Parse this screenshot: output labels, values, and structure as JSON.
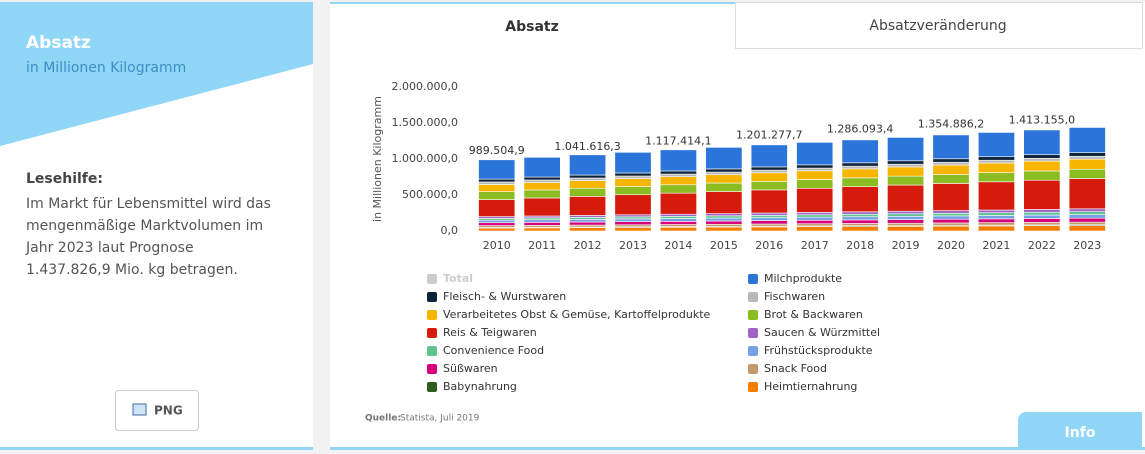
{
  "sidebar": {
    "title": "Absatz",
    "subtitle": "in Millionen Kilogramm",
    "help_heading": "Lesehilfe:",
    "help_lines": [
      "Im Markt für Lebensmittel wird das",
      "mengenmäßige Marktvolumen im",
      "Jahr 2023 laut Prognose",
      "1.437.826,9 Mio. kg betragen."
    ],
    "button": "PNG"
  },
  "tabs": [
    "Absatz",
    "Absatzveränderung"
  ],
  "source_label": "Quelle:",
  "source_text": "Statista, Juli 2019",
  "info_button": "Info",
  "chart_data": {
    "type": "bar",
    "stacked": true,
    "y_label": "in Millionen Kilogramm",
    "categories": [
      "2010",
      "2011",
      "2012",
      "2013",
      "2014",
      "2015",
      "2016",
      "2017",
      "2018",
      "2019",
      "2020",
      "2021",
      "2022",
      "2023"
    ],
    "ylim": [
      0,
      2000000
    ],
    "yticks": [
      {
        "value": 0,
        "label": "0,0"
      },
      {
        "value": 500000,
        "label": "500.000,0"
      },
      {
        "value": 1000000,
        "label": "1.000.000,0"
      },
      {
        "value": 1500000,
        "label": "1.500.000,0"
      },
      {
        "value": 2000000,
        "label": "2.000.000,0"
      }
    ],
    "grid": false,
    "series": [
      {
        "name": "Total",
        "color": "#cccccc",
        "visible": false,
        "values": [
          989504.9,
          1015000,
          1041616.3,
          1079000,
          1117414.1,
          1159000,
          1201277.7,
          1243000,
          1286093.4,
          1320000,
          1354886.2,
          1384000,
          1413155.0,
          1437826.9
        ],
        "value_labels": [
          "989.504,9",
          null,
          "1.041.616,3",
          null,
          "1.117.414,1",
          null,
          "1.201.277,7",
          null,
          "1.286.093,4",
          null,
          "1.354.886,2",
          null,
          "1.413.155,0",
          null
        ]
      },
      {
        "name": "Milchprodukte",
        "color": "#2b74d9",
        "values": [
          268000,
          274300,
          280600,
          286900,
          293200,
          299500,
          305800,
          312200,
          318500,
          324800,
          331100,
          337400,
          343700,
          350000
        ]
      },
      {
        "name": "Fleisch- & Wurstwaren",
        "color": "#0d233a",
        "values": [
          40000,
          40800,
          41500,
          42300,
          43100,
          43800,
          44600,
          45400,
          46200,
          46900,
          47700,
          48500,
          49200,
          50000
        ]
      },
      {
        "name": "Fischwaren",
        "color": "#b8b8b8",
        "values": [
          35000,
          35400,
          35800,
          36200,
          36500,
          36900,
          37300,
          37700,
          38100,
          38500,
          38800,
          39200,
          39600,
          40000
        ]
      },
      {
        "name": "Verarbeitetes Obst & Gemüse, Kartoffelprodukte",
        "color": "#f7b500",
        "values": [
          100000,
          103100,
          106200,
          109200,
          112300,
          115400,
          118500,
          121500,
          124600,
          127700,
          130800,
          133800,
          136900,
          140000
        ]
      },
      {
        "name": "Brot & Backwaren",
        "color": "#8bbc21",
        "values": [
          110000,
          111500,
          113100,
          114600,
          116200,
          117700,
          119200,
          120800,
          122300,
          123800,
          125400,
          126900,
          128500,
          130000
        ]
      },
      {
        "name": "Reis & Teigwaren",
        "color": "#d61a0c",
        "values": [
          236000,
          250200,
          264300,
          278500,
          292600,
          306800,
          320900,
          335100,
          349200,
          363400,
          377500,
          391700,
          405800,
          420000
        ]
      },
      {
        "name": "Saucen & Würzmittel",
        "color": "#a064c8",
        "values": [
          25000,
          26200,
          27300,
          28500,
          29600,
          30800,
          31900,
          33100,
          34200,
          35400,
          36500,
          37700,
          38800,
          40000
        ]
      },
      {
        "name": "Convenience Food",
        "color": "#5fc48f",
        "values": [
          25000,
          26200,
          27300,
          28500,
          29600,
          30800,
          31900,
          33100,
          34200,
          35400,
          36500,
          37700,
          38800,
          40000
        ]
      },
      {
        "name": "Frühstücksprodukte",
        "color": "#77a1e5",
        "values": [
          35000,
          36200,
          37300,
          38500,
          39600,
          40800,
          41900,
          43100,
          44200,
          45400,
          46500,
          47700,
          48800,
          50000
        ]
      },
      {
        "name": "Süßwaren",
        "color": "#d6007a",
        "values": [
          40000,
          41200,
          42300,
          43500,
          44600,
          45800,
          46900,
          48100,
          49200,
          50400,
          51500,
          52700,
          53800,
          55000
        ]
      },
      {
        "name": "Snack Food",
        "color": "#c49a6c",
        "values": [
          25000,
          25800,
          26500,
          27300,
          28100,
          28800,
          29600,
          30400,
          31200,
          31900,
          32700,
          33500,
          34200,
          35000
        ]
      },
      {
        "name": "Babynahrung",
        "color": "#2e5e1c",
        "values": [
          10000,
          10200,
          10300,
          10500,
          10600,
          10800,
          10900,
          11100,
          11200,
          11400,
          11500,
          11700,
          11800,
          12000
        ]
      },
      {
        "name": "Heimtiernahrung",
        "color": "#f57d00",
        "values": [
          40000,
          42800,
          45500,
          48300,
          51100,
          53800,
          56600,
          59400,
          62200,
          64900,
          67700,
          70500,
          73200,
          76000
        ]
      }
    ]
  }
}
